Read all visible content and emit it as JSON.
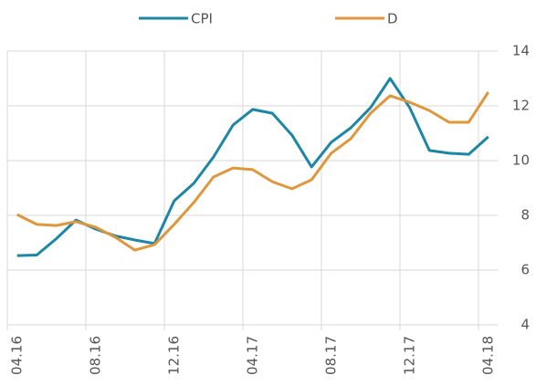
{
  "chart_data": {
    "type": "line",
    "categories": [
      "04.16",
      null,
      null,
      null,
      "08.16",
      null,
      null,
      null,
      "12.16",
      null,
      null,
      null,
      "04.17",
      null,
      null,
      null,
      "08.17",
      null,
      null,
      null,
      "12.17",
      null,
      null,
      null,
      "04.18"
    ],
    "series": [
      {
        "name": "CPI",
        "color": "#1c86a6",
        "values": [
          6.53,
          6.55,
          7.15,
          7.83,
          7.5,
          7.25,
          7.1,
          6.97,
          8.53,
          9.17,
          10.13,
          11.3,
          11.87,
          11.73,
          10.93,
          9.77,
          10.67,
          11.2,
          11.93,
          13.0,
          11.93,
          10.37,
          10.27,
          10.23,
          10.87
        ]
      },
      {
        "name": "D",
        "color": "#e0963a",
        "values": [
          8.03,
          7.67,
          7.63,
          7.77,
          7.57,
          7.2,
          6.73,
          6.93,
          7.67,
          8.47,
          9.4,
          9.73,
          9.67,
          9.23,
          8.97,
          9.3,
          10.27,
          10.8,
          11.73,
          12.37,
          12.13,
          11.83,
          11.4,
          11.4,
          12.5
        ]
      }
    ],
    "ylim": [
      4,
      14
    ],
    "yticks": [
      4,
      6,
      8,
      10,
      12,
      14
    ],
    "grid": true,
    "legend": "top"
  }
}
